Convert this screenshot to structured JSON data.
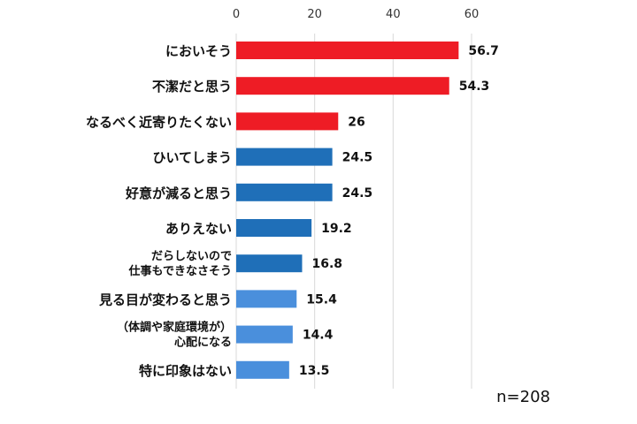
{
  "chart_data": {
    "type": "bar",
    "orientation": "horizontal",
    "xlim": [
      0,
      60
    ],
    "xticks": [
      0,
      20,
      40,
      60
    ],
    "grid": true,
    "categories": [
      [
        "においそう"
      ],
      [
        "不潔だと思う"
      ],
      [
        "なるべく近寄りたくない"
      ],
      [
        "ひいてしまう"
      ],
      [
        "好意が減ると思う"
      ],
      [
        "ありえない"
      ],
      [
        "だらしないので",
        "仕事もできなさそう"
      ],
      [
        "見る目が変わると思う"
      ],
      [
        "（体調や家庭環境が）",
        "心配になる"
      ],
      [
        "特に印象はない"
      ]
    ],
    "values": [
      56.7,
      54.3,
      26,
      24.5,
      24.5,
      19.2,
      16.8,
      15.4,
      14.4,
      13.5
    ],
    "value_labels": [
      "56.7",
      "54.3",
      "26",
      "24.5",
      "24.5",
      "19.2",
      "16.8",
      "15.4",
      "14.4",
      "13.5"
    ],
    "bar_colors": [
      "#ee1c25",
      "#ee1c25",
      "#ee1c25",
      "#1f6fb8",
      "#1f6fb8",
      "#1f6fb8",
      "#1f6fb8",
      "#4a8fdc",
      "#4a8fdc",
      "#4a8fdc"
    ],
    "note": "n=208"
  }
}
